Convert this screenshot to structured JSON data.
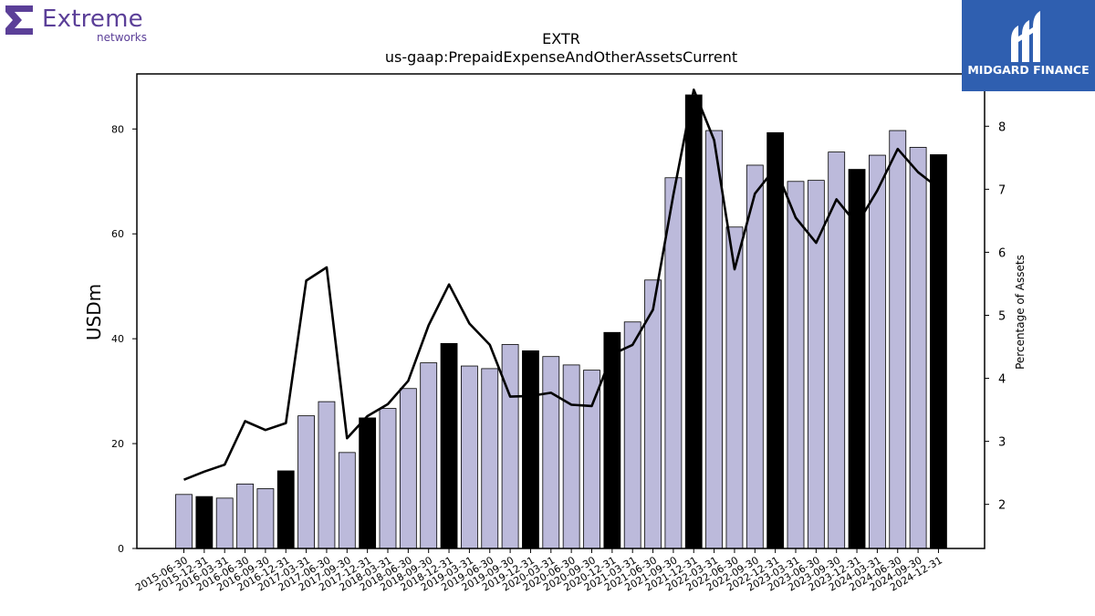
{
  "logos": {
    "left_word": "Extreme",
    "left_sub": "networks",
    "right_text": "MIDGARD FINANCE",
    "left_color": "#5b3f98",
    "right_bg": "#2f5fb0"
  },
  "chart_data": {
    "type": "bar",
    "title": "EXTR",
    "subtitle": "us-gaap:PrepaidExpenseAndOtherAssetsCurrent",
    "ylabel": "USDm",
    "y2label": "Percentage of Assets",
    "ylim": [
      0,
      90.5
    ],
    "y2lim": [
      1.3,
      8.83
    ],
    "yticks": [
      0,
      20,
      40,
      60,
      80
    ],
    "y2ticks": [
      2,
      3,
      4,
      5,
      6,
      7,
      8
    ],
    "categories": [
      "2015-06-30",
      "2015-12-31",
      "2016-03-31",
      "2016-06-30",
      "2016-09-30",
      "2016-12-31",
      "2017-03-31",
      "2017-06-30",
      "2017-09-30",
      "2017-12-31",
      "2018-03-31",
      "2018-06-30",
      "2018-09-30",
      "2018-12-31",
      "2019-03-31",
      "2019-06-30",
      "2019-09-30",
      "2019-12-31",
      "2020-03-31",
      "2020-06-30",
      "2020-09-30",
      "2020-12-31",
      "2021-03-31",
      "2021-06-30",
      "2021-09-30",
      "2021-12-31",
      "2022-03-31",
      "2022-06-30",
      "2022-09-30",
      "2022-12-31",
      "2023-03-31",
      "2023-06-30",
      "2023-09-30",
      "2023-12-31",
      "2024-03-31",
      "2024-06-30",
      "2024-09-30",
      "2024-12-31"
    ],
    "series": [
      {
        "type": "bar",
        "axis": "left",
        "values": [
          10.3,
          9.9,
          9.6,
          12.3,
          11.4,
          14.8,
          25.3,
          28.0,
          18.3,
          24.9,
          26.7,
          30.5,
          35.4,
          39.1,
          34.8,
          34.3,
          38.9,
          37.7,
          36.6,
          35.0,
          34.0,
          41.2,
          43.2,
          51.2,
          70.7,
          86.5,
          79.7,
          61.3,
          73.1,
          79.3,
          70.0,
          70.2,
          75.6,
          72.3,
          75.0,
          79.7,
          76.5,
          75.1
        ],
        "annual_flags": [
          false,
          true,
          false,
          false,
          false,
          true,
          false,
          false,
          false,
          true,
          false,
          false,
          false,
          true,
          false,
          false,
          false,
          true,
          false,
          false,
          false,
          true,
          false,
          false,
          false,
          true,
          false,
          false,
          false,
          true,
          false,
          false,
          false,
          true,
          false,
          false,
          false,
          true
        ],
        "color": "#bcbadb",
        "annual_color": "#000000"
      },
      {
        "type": "line",
        "axis": "right",
        "values": [
          2.39,
          2.52,
          2.63,
          3.32,
          3.18,
          3.29,
          5.55,
          5.76,
          3.05,
          3.4,
          3.59,
          3.96,
          4.84,
          5.49,
          4.87,
          4.53,
          3.71,
          3.72,
          3.77,
          3.58,
          3.56,
          4.38,
          4.53,
          5.09,
          6.91,
          8.58,
          7.78,
          5.73,
          6.93,
          7.34,
          6.55,
          6.15,
          6.84,
          6.44,
          6.98,
          7.64,
          7.27,
          7.02
        ],
        "color": "#000000"
      }
    ]
  }
}
